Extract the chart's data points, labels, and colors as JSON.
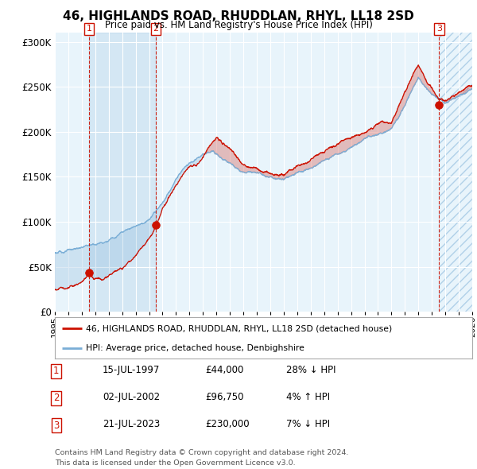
{
  "title": "46, HIGHLANDS ROAD, RHUDDLAN, RHYL, LL18 2SD",
  "subtitle": "Price paid vs. HM Land Registry's House Price Index (HPI)",
  "background_color": "#ffffff",
  "plot_bg_color": "#e8f4fb",
  "grid_color": "#ffffff",
  "hpi_color": "#7aaed6",
  "price_color": "#cc1100",
  "dashed_line_color": "#cc1100",
  "ylim": [
    0,
    310000
  ],
  "yticks": [
    0,
    50000,
    100000,
    150000,
    200000,
    250000,
    300000
  ],
  "ytick_labels": [
    "£0",
    "£50K",
    "£100K",
    "£150K",
    "£200K",
    "£250K",
    "£300K"
  ],
  "x_start_year": 1995,
  "x_end_year": 2026,
  "xtick_years": [
    1995,
    1996,
    1997,
    1998,
    1999,
    2000,
    2001,
    2002,
    2003,
    2004,
    2005,
    2006,
    2007,
    2008,
    2009,
    2010,
    2011,
    2012,
    2013,
    2014,
    2015,
    2016,
    2017,
    2018,
    2019,
    2020,
    2021,
    2022,
    2023,
    2024,
    2025,
    2026
  ],
  "sales": [
    {
      "label": "1",
      "date_x": 1997.54,
      "price": 44000,
      "pct": "28%",
      "dir": "↓",
      "date_str": "15-JUL-1997",
      "price_str": "£44,000"
    },
    {
      "label": "2",
      "date_x": 2002.5,
      "price": 96750,
      "pct": "4%",
      "dir": "↑",
      "date_str": "02-JUL-2002",
      "price_str": "£96,750"
    },
    {
      "label": "3",
      "date_x": 2023.54,
      "price": 230000,
      "pct": "7%",
      "dir": "↓",
      "date_str": "21-JUL-2023",
      "price_str": "£230,000"
    }
  ],
  "legend_property_label": "46, HIGHLANDS ROAD, RHUDDLAN, RHYL, LL18 2SD (detached house)",
  "legend_hpi_label": "HPI: Average price, detached house, Denbighshire",
  "footer_line1": "Contains HM Land Registry data © Crown copyright and database right 2024.",
  "footer_line2": "This data is licensed under the Open Government Licence v3.0.",
  "hpi_anchors_x": [
    1995,
    1996,
    1997,
    1998,
    1999,
    2000,
    2001,
    2002,
    2003,
    2004,
    2005,
    2006,
    2007,
    2008,
    2009,
    2010,
    2011,
    2012,
    2013,
    2014,
    2015,
    2016,
    2017,
    2018,
    2019,
    2020,
    2021,
    2022,
    2023,
    2024,
    2025,
    2026
  ],
  "hpi_anchors_y": [
    60000,
    62000,
    65000,
    68000,
    74000,
    85000,
    95000,
    103000,
    120000,
    145000,
    162000,
    170000,
    172000,
    165000,
    155000,
    158000,
    155000,
    152000,
    158000,
    163000,
    172000,
    178000,
    185000,
    190000,
    196000,
    202000,
    230000,
    265000,
    248000,
    238000,
    243000,
    250000
  ],
  "price_anchors_x": [
    1995,
    1996,
    1997,
    1997.54,
    1998,
    1999,
    2000,
    2001,
    2002,
    2002.5,
    2003,
    2004,
    2005,
    2006,
    2007,
    2008,
    2009,
    2010,
    2011,
    2012,
    2013,
    2014,
    2015,
    2016,
    2017,
    2018,
    2019,
    2020,
    2021,
    2022,
    2023,
    2023.54,
    2024,
    2025,
    2026
  ],
  "price_anchors_y": [
    35000,
    36000,
    38000,
    44000,
    40000,
    44000,
    50000,
    65000,
    85000,
    96750,
    118000,
    142000,
    162000,
    173000,
    195000,
    183000,
    168000,
    165000,
    158000,
    155000,
    162000,
    167000,
    175000,
    182000,
    190000,
    196000,
    205000,
    210000,
    238000,
    268000,
    245000,
    230000,
    228000,
    232000,
    238000
  ]
}
